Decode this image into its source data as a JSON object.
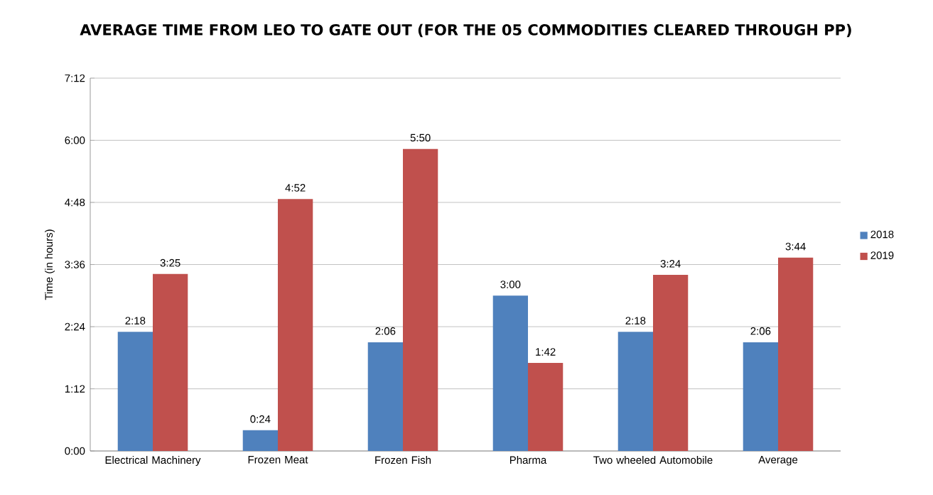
{
  "chart_data": {
    "type": "bar",
    "title": "AVERAGE TIME FROM LEO TO GATE OUT (FOR THE 05 COMMODITIES CLEARED THROUGH PP)",
    "ylabel": "Time (in hours)",
    "categories": [
      "Electrical Machinery",
      "Frozen Meat",
      "Frozen Fish",
      "Pharma",
      "Two wheeled Automobile",
      "Average"
    ],
    "series": [
      {
        "name": "2018",
        "color": "#4f81bd",
        "values": [
          2.3,
          0.4,
          2.1,
          3.0,
          2.3,
          2.1
        ],
        "value_labels": [
          "2:18",
          "0:24",
          "2:06",
          "3:00",
          "2:18",
          "2:06"
        ]
      },
      {
        "name": "2019",
        "color": "#c0504d",
        "values": [
          3.4167,
          4.8667,
          5.8333,
          1.7,
          3.4,
          3.7333
        ],
        "value_labels": [
          "3:25",
          "4:52",
          "5:50",
          "1:42",
          "3:24",
          "3:44"
        ]
      }
    ],
    "ylim": [
      0,
      7.2
    ],
    "yticks": [
      {
        "value": 0,
        "label": "0:00"
      },
      {
        "value": 1.2,
        "label": "1:12"
      },
      {
        "value": 2.4,
        "label": "2:24"
      },
      {
        "value": 3.6,
        "label": "3:36"
      },
      {
        "value": 4.8,
        "label": "4:48"
      },
      {
        "value": 6.0,
        "label": "6:00"
      },
      {
        "value": 7.2,
        "label": "7:12"
      }
    ],
    "grid": "y",
    "legend": "right"
  }
}
